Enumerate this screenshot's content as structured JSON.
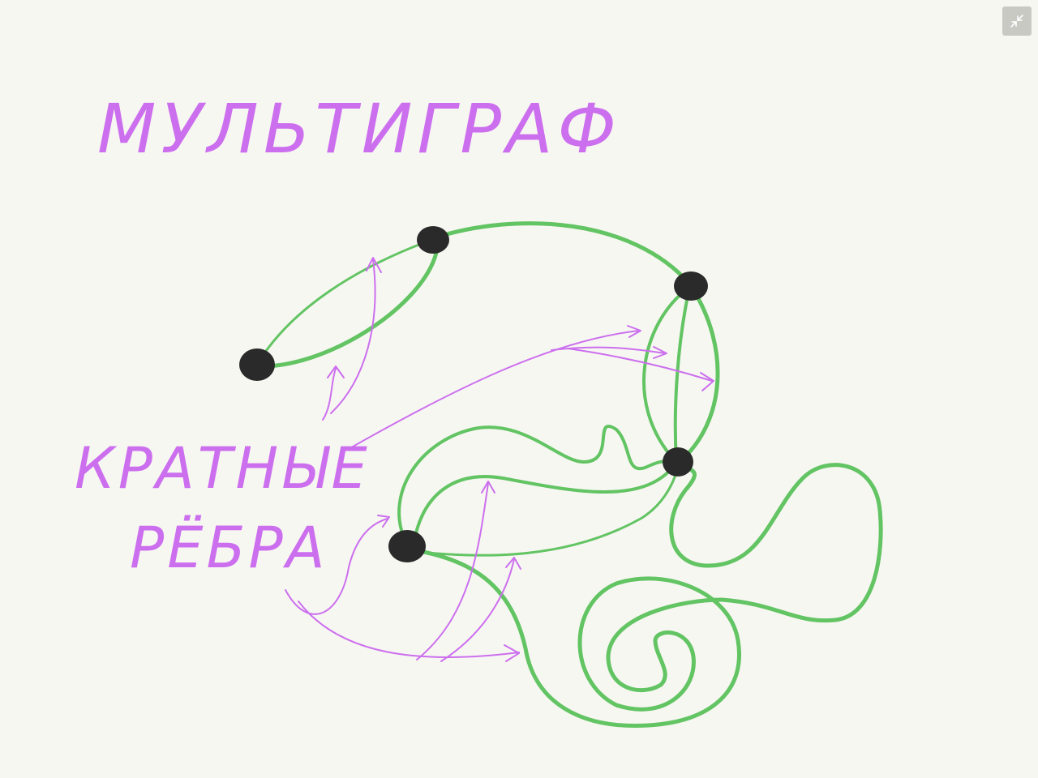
{
  "title": "МУЛЬТИГРАФ",
  "label_line1": "КРАТНЫЕ",
  "label_line2": "РЁБРА",
  "toolbar": {
    "exit_fullscreen_icon": "exit-fullscreen-icon"
  },
  "colors": {
    "background": "#f7f7f2",
    "edge": "#62c462",
    "vertex": "#2a2a2a",
    "annotation": "#cc6fee",
    "button": "#c9c9c4"
  }
}
